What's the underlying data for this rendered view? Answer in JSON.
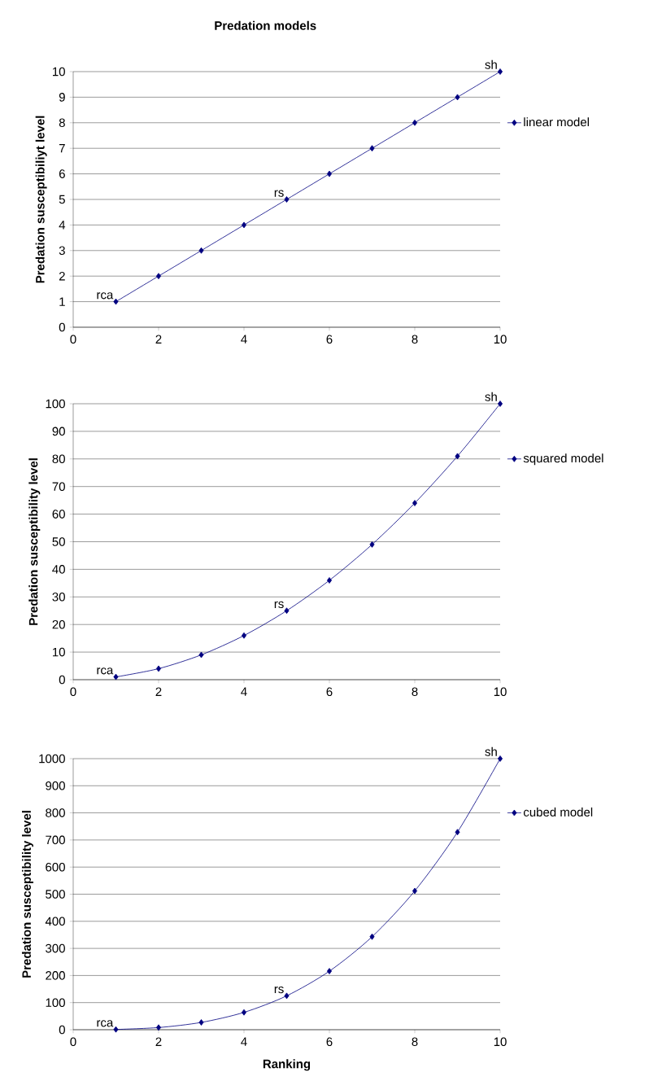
{
  "chart_data": [
    {
      "type": "line",
      "title": "Predation models",
      "ylabel": "Predation susceptibiliyt level",
      "x": [
        1,
        2,
        3,
        4,
        5,
        6,
        7,
        8,
        9,
        10
      ],
      "series": [
        {
          "name": "linear model",
          "color": "#000080",
          "values": [
            1,
            2,
            3,
            4,
            5,
            6,
            7,
            8,
            9,
            10
          ]
        }
      ],
      "xlim": [
        0,
        10
      ],
      "ylim": [
        0,
        10
      ],
      "xticks": [
        0,
        2,
        4,
        6,
        8,
        10
      ],
      "yticks": [
        0,
        1,
        2,
        3,
        4,
        5,
        6,
        7,
        8,
        9,
        10
      ],
      "grid": "y",
      "legend": "right",
      "marker": "diamond",
      "line_style": "solid",
      "annotations": [
        {
          "text": "rca",
          "x": 1,
          "y": 1
        },
        {
          "text": "rs",
          "x": 5,
          "y": 5
        },
        {
          "text": "sh",
          "x": 10,
          "y": 10
        }
      ]
    },
    {
      "type": "line",
      "ylabel": "Predation susceptibility level",
      "x": [
        1,
        2,
        3,
        4,
        5,
        6,
        7,
        8,
        9,
        10
      ],
      "series": [
        {
          "name": "squared model",
          "color": "#000080",
          "values": [
            1,
            4,
            9,
            16,
            25,
            36,
            49,
            64,
            81,
            100
          ]
        }
      ],
      "xlim": [
        0,
        10
      ],
      "ylim": [
        0,
        100
      ],
      "xticks": [
        0,
        2,
        4,
        6,
        8,
        10
      ],
      "yticks": [
        0,
        10,
        20,
        30,
        40,
        50,
        60,
        70,
        80,
        90,
        100
      ],
      "grid": "y",
      "legend": "right",
      "marker": "diamond",
      "line_style": "solid",
      "annotations": [
        {
          "text": "rca",
          "x": 1,
          "y": 1
        },
        {
          "text": "rs",
          "x": 5,
          "y": 25
        },
        {
          "text": "sh",
          "x": 10,
          "y": 100
        }
      ]
    },
    {
      "type": "line",
      "xlabel": "Ranking",
      "ylabel": "Predation susceptibility level",
      "x": [
        1,
        2,
        3,
        4,
        5,
        6,
        7,
        8,
        9,
        10
      ],
      "series": [
        {
          "name": "cubed model",
          "color": "#000080",
          "values": [
            1,
            8,
            27,
            64,
            125,
            216,
            343,
            512,
            729,
            1000
          ]
        }
      ],
      "xlim": [
        0,
        10
      ],
      "ylim": [
        0,
        1000
      ],
      "xticks": [
        0,
        2,
        4,
        6,
        8,
        10
      ],
      "yticks": [
        0,
        100,
        200,
        300,
        400,
        500,
        600,
        700,
        800,
        900,
        1000
      ],
      "grid": "y",
      "legend": "right",
      "marker": "diamond",
      "line_style": "solid",
      "annotations": [
        {
          "text": "rca",
          "x": 1,
          "y": 1
        },
        {
          "text": "rs",
          "x": 5,
          "y": 125
        },
        {
          "text": "sh",
          "x": 10,
          "y": 1000
        }
      ]
    }
  ]
}
